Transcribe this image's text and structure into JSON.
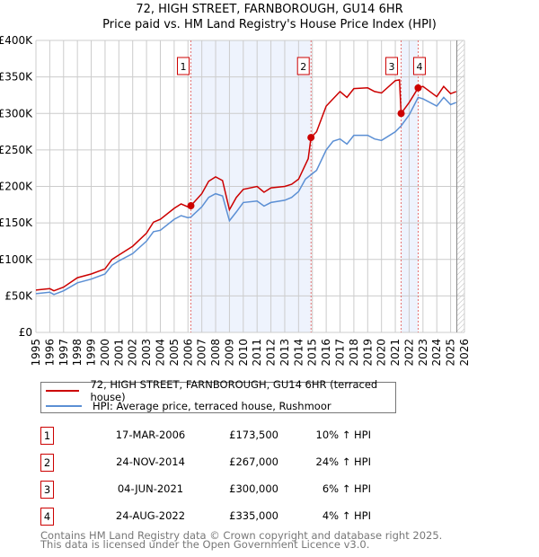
{
  "chart_data": {
    "type": "line",
    "title": "72, HIGH STREET, FARNBOROUGH, GU14 6HR",
    "subtitle": "Price paid vs. HM Land Registry's House Price Index (HPI)",
    "xlim": [
      1995,
      2026
    ],
    "ylim": [
      0,
      400000
    ],
    "x_ticks": [
      "1995",
      "1996",
      "1997",
      "1998",
      "1999",
      "2000",
      "2001",
      "2002",
      "2003",
      "2004",
      "2005",
      "2006",
      "2007",
      "2008",
      "2009",
      "2010",
      "2011",
      "2012",
      "2013",
      "2014",
      "2015",
      "2016",
      "2017",
      "2018",
      "2019",
      "2020",
      "2021",
      "2022",
      "2023",
      "2024",
      "2025",
      "2026"
    ],
    "y_ticks": [
      {
        "v": 0,
        "label": "£0"
      },
      {
        "v": 50000,
        "label": "£50K"
      },
      {
        "v": 100000,
        "label": "£100K"
      },
      {
        "v": 150000,
        "label": "£150K"
      },
      {
        "v": 200000,
        "label": "£200K"
      },
      {
        "v": 250000,
        "label": "£250K"
      },
      {
        "v": 300000,
        "label": "£300K"
      },
      {
        "v": 350000,
        "label": "£350K"
      },
      {
        "v": 400000,
        "label": "£400K"
      }
    ],
    "grid": true,
    "series": [
      {
        "name": "72, HIGH STREET, FARNBOROUGH, GU14 6HR (terraced house)",
        "color": "#cc0000",
        "x": [
          1995,
          1996,
          1996.3,
          1997,
          1998,
          1999,
          2000,
          2000.5,
          2001,
          2002,
          2003,
          2003.5,
          2004,
          2005,
          2005.5,
          2006,
          2006.21,
          2007,
          2007.5,
          2008,
          2008.5,
          2009,
          2009.5,
          2010,
          2011,
          2011.5,
          2012,
          2013,
          2013.5,
          2014,
          2014.7,
          2014.9,
          2015.3,
          2016,
          2016.5,
          2017,
          2017.5,
          2018,
          2019,
          2019.5,
          2020,
          2021,
          2021.3,
          2021.42,
          2022,
          2022.65,
          2023,
          2024,
          2024.5,
          2025,
          2025.4
        ],
        "y": [
          58000,
          60000,
          57000,
          62000,
          75000,
          80000,
          87000,
          100000,
          106000,
          118000,
          136000,
          151000,
          155000,
          170000,
          176000,
          172000,
          173500,
          190000,
          207000,
          213000,
          208000,
          168000,
          185000,
          196000,
          200000,
          192000,
          198000,
          200000,
          203000,
          210000,
          238000,
          267000,
          275000,
          310000,
          320000,
          330000,
          322000,
          334000,
          335000,
          330000,
          328000,
          345000,
          346000,
          300000,
          315000,
          335000,
          337000,
          323000,
          337000,
          327000,
          330000
        ]
      },
      {
        "name": "HPI: Average price, terraced house, Rushmoor",
        "color": "#5b8fd4",
        "x": [
          1995,
          1996,
          1996.3,
          1997,
          1998,
          1999,
          2000,
          2000.5,
          2001,
          2002,
          2003,
          2003.5,
          2004,
          2005,
          2005.5,
          2006,
          2006.21,
          2007,
          2007.5,
          2008,
          2008.5,
          2009,
          2009.5,
          2010,
          2011,
          2011.5,
          2012,
          2013,
          2013.5,
          2014,
          2014.5,
          2014.9,
          2015.3,
          2016,
          2016.5,
          2017,
          2017.5,
          2018,
          2019,
          2019.5,
          2020,
          2021,
          2021.42,
          2022,
          2022.65,
          2023,
          2024,
          2024.5,
          2025,
          2025.4
        ],
        "y": [
          53000,
          55000,
          52000,
          57000,
          68000,
          73000,
          80000,
          92000,
          98000,
          108000,
          125000,
          138000,
          140000,
          155000,
          160000,
          157000,
          158000,
          172000,
          185000,
          190000,
          187000,
          153000,
          165000,
          178000,
          180000,
          173000,
          178000,
          181000,
          185000,
          193000,
          210000,
          216000,
          222000,
          250000,
          262000,
          265000,
          258000,
          270000,
          270000,
          265000,
          263000,
          275000,
          283000,
          298000,
          322000,
          320000,
          310000,
          322000,
          312000,
          315000
        ]
      }
    ],
    "sales": [
      {
        "n": "1",
        "x": 2006.21,
        "y": 173500
      },
      {
        "n": "2",
        "x": 2014.9,
        "y": 267000
      },
      {
        "n": "3",
        "x": 2021.42,
        "y": 300000
      },
      {
        "n": "4",
        "x": 2022.65,
        "y": 335000
      }
    ],
    "shaded": [
      [
        2006.21,
        2014.9
      ],
      [
        2021.42,
        2022.65
      ]
    ],
    "forecast_hatch_from": 2025.45
  },
  "title": "72, HIGH STREET, FARNBOROUGH, GU14 6HR",
  "subtitle": "Price paid vs. HM Land Registry's House Price Index (HPI)",
  "legend": [
    "72, HIGH STREET, FARNBOROUGH, GU14 6HR (terraced house)",
    "HPI: Average price, terraced house, Rushmoor"
  ],
  "colors": {
    "property": "#cc0000",
    "hpi": "#5b8fd4"
  },
  "transactions": [
    {
      "n": "1",
      "date": "17-MAR-2006",
      "price": "£173,500",
      "hpi": "10% ↑ HPI"
    },
    {
      "n": "2",
      "date": "24-NOV-2014",
      "price": "£267,000",
      "hpi": "24% ↑ HPI"
    },
    {
      "n": "3",
      "date": "04-JUN-2021",
      "price": "£300,000",
      "hpi": "6% ↑ HPI"
    },
    {
      "n": "4",
      "date": "24-AUG-2022",
      "price": "£335,000",
      "hpi": "4% ↑ HPI"
    }
  ],
  "footer": [
    "Contains HM Land Registry data © Crown copyright and database right 2025.",
    "This data is licensed under the Open Government Licence v3.0."
  ]
}
